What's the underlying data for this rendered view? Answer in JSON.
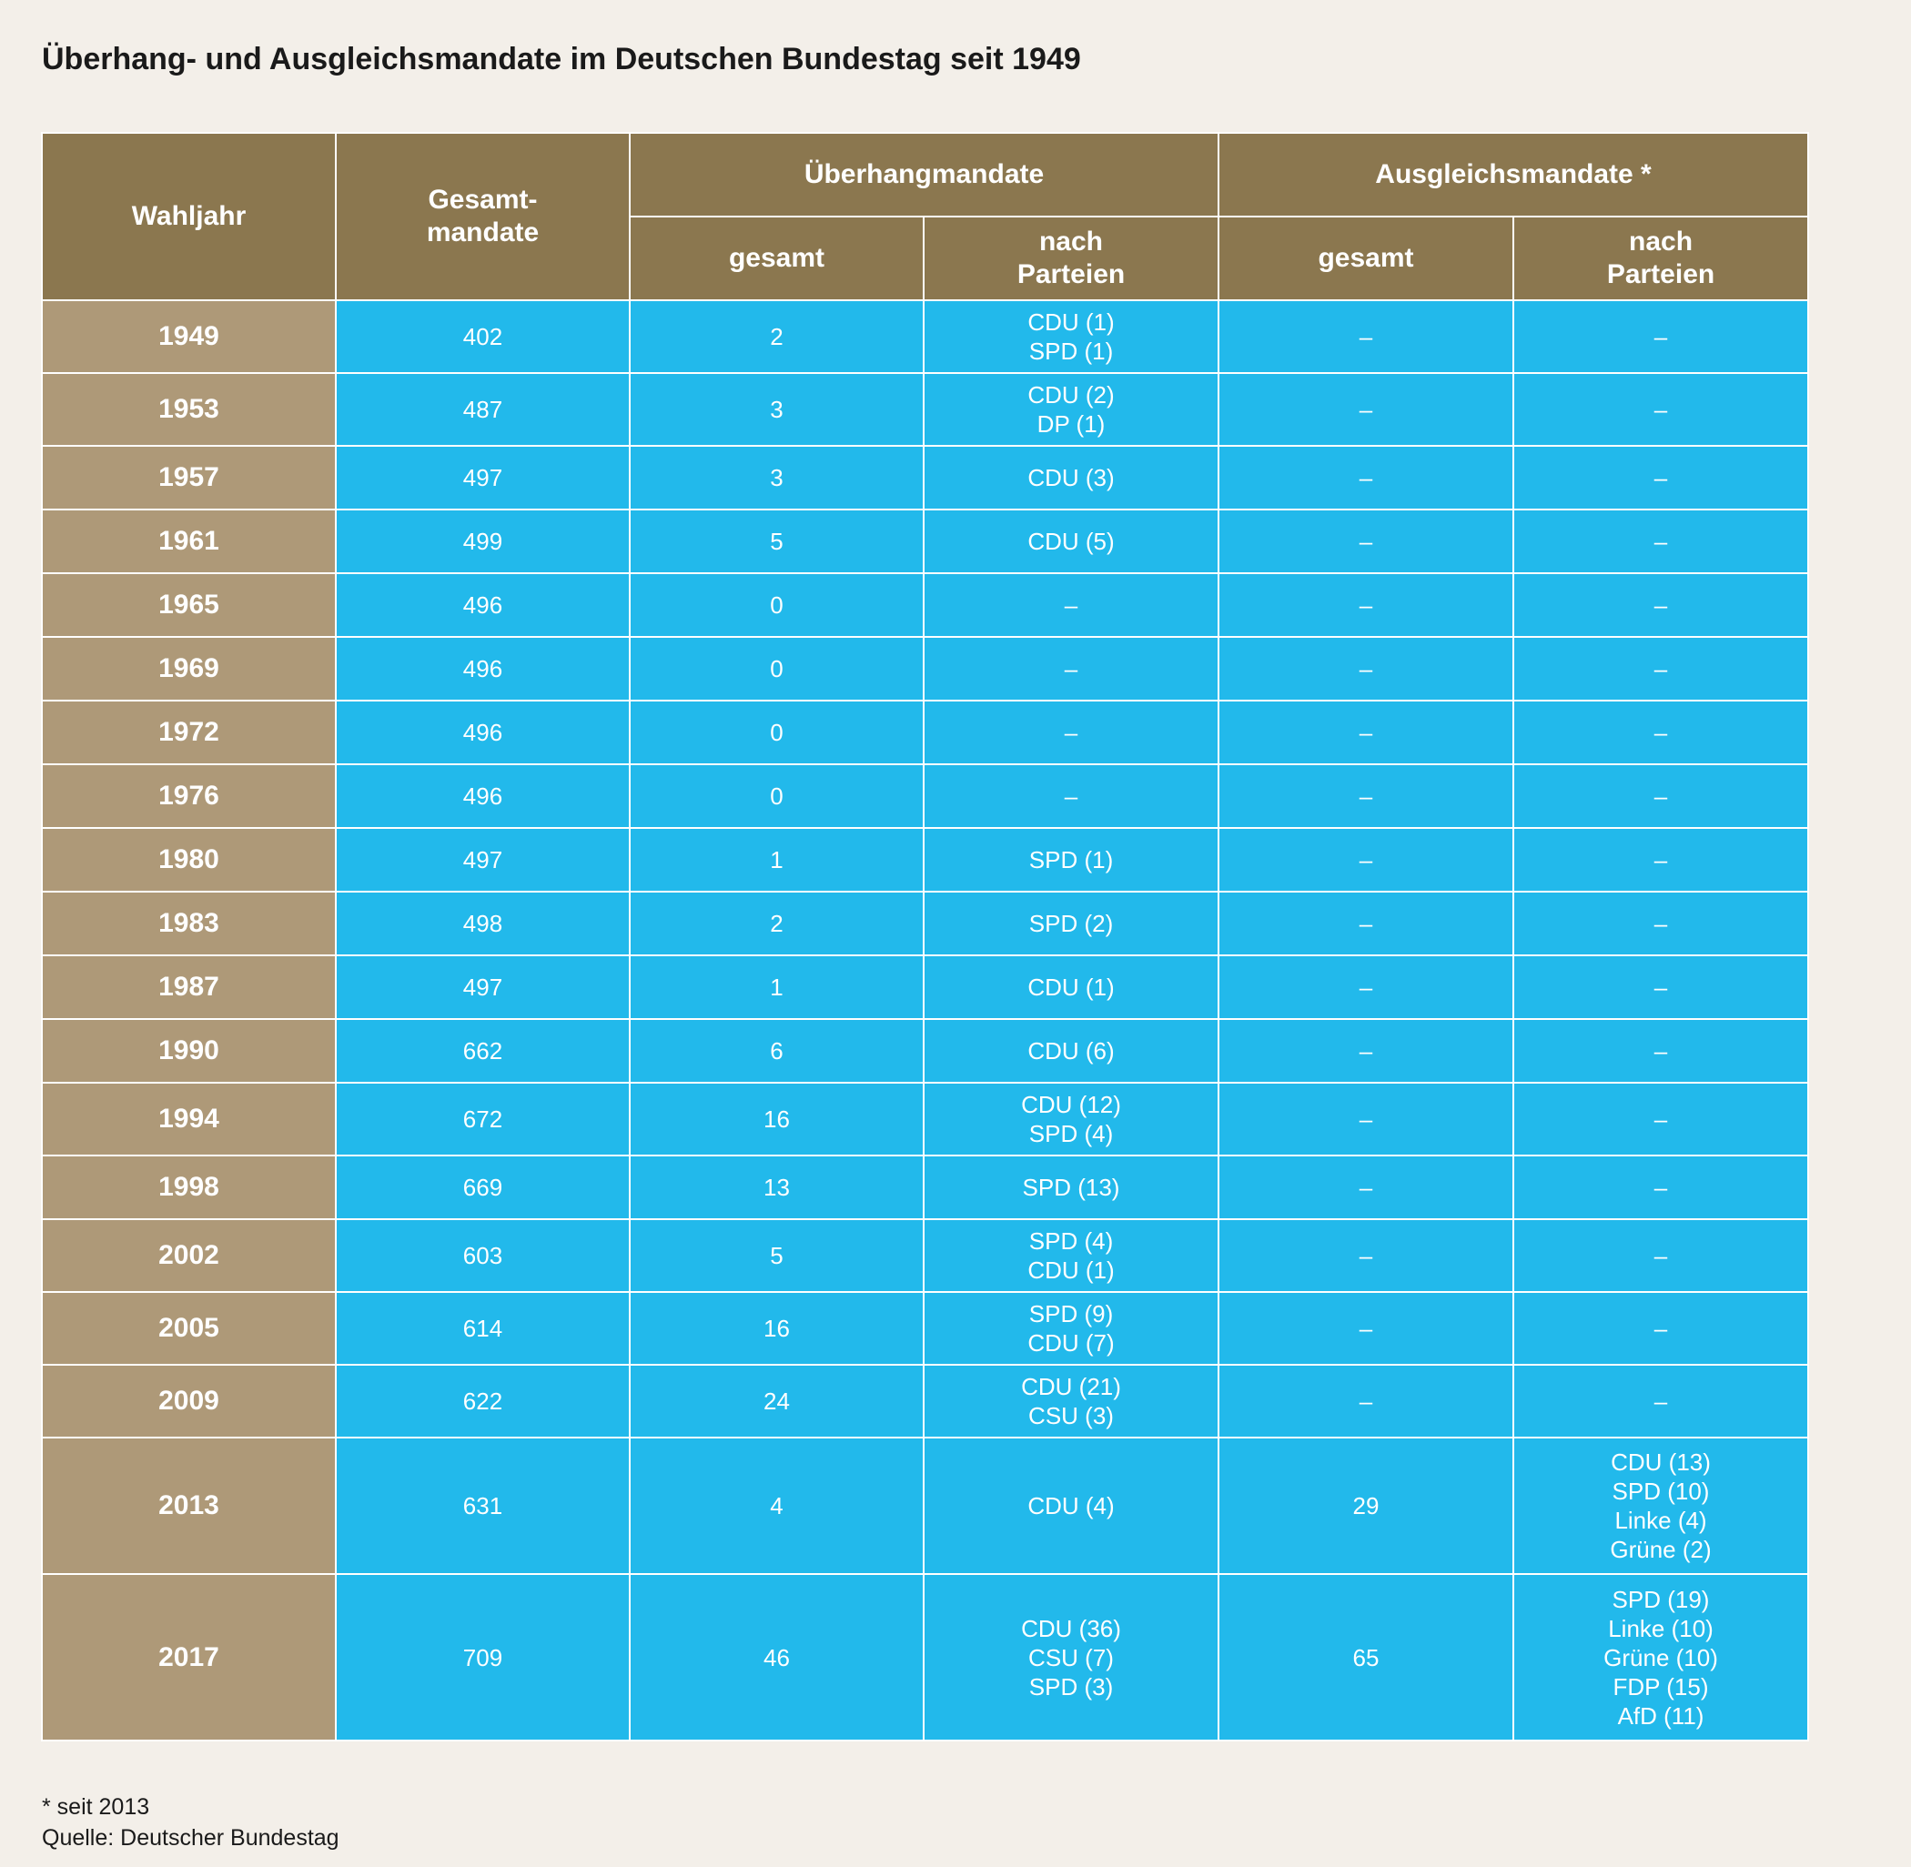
{
  "title": "Überhang- und Ausgleichsmandate im Deutschen Bundestag seit 1949",
  "headers": {
    "wahljahr": "Wahljahr",
    "gesamtmandate": "Gesamt-\nmandate",
    "ueberhang": "Überhangmandate",
    "ausgleich": "Ausgleichsmandate *",
    "gesamt": "gesamt",
    "nach_parteien": "nach\nParteien"
  },
  "footnote": "* seit 2013",
  "source": "Quelle: Deutscher Bundestag",
  "chart_data": {
    "type": "table",
    "columns": [
      "Wahljahr",
      "Gesamtmandate",
      "Überhangmandate gesamt",
      "Überhangmandate nach Parteien",
      "Ausgleichsmandate gesamt",
      "Ausgleichsmandate nach Parteien"
    ],
    "rows": [
      {
        "year": "1949",
        "total": "402",
        "ueb_total": "2",
        "ueb_parties": [
          "CDU (1)",
          "SPD (1)"
        ],
        "aus_total": "–",
        "aus_parties": [
          "–"
        ]
      },
      {
        "year": "1953",
        "total": "487",
        "ueb_total": "3",
        "ueb_parties": [
          "CDU (2)",
          "DP (1)"
        ],
        "aus_total": "–",
        "aus_parties": [
          "–"
        ]
      },
      {
        "year": "1957",
        "total": "497",
        "ueb_total": "3",
        "ueb_parties": [
          "CDU (3)"
        ],
        "aus_total": "–",
        "aus_parties": [
          "–"
        ]
      },
      {
        "year": "1961",
        "total": "499",
        "ueb_total": "5",
        "ueb_parties": [
          "CDU (5)"
        ],
        "aus_total": "–",
        "aus_parties": [
          "–"
        ]
      },
      {
        "year": "1965",
        "total": "496",
        "ueb_total": "0",
        "ueb_parties": [
          "–"
        ],
        "aus_total": "–",
        "aus_parties": [
          "–"
        ]
      },
      {
        "year": "1969",
        "total": "496",
        "ueb_total": "0",
        "ueb_parties": [
          "–"
        ],
        "aus_total": "–",
        "aus_parties": [
          "–"
        ]
      },
      {
        "year": "1972",
        "total": "496",
        "ueb_total": "0",
        "ueb_parties": [
          "–"
        ],
        "aus_total": "–",
        "aus_parties": [
          "–"
        ]
      },
      {
        "year": "1976",
        "total": "496",
        "ueb_total": "0",
        "ueb_parties": [
          "–"
        ],
        "aus_total": "–",
        "aus_parties": [
          "–"
        ]
      },
      {
        "year": "1980",
        "total": "497",
        "ueb_total": "1",
        "ueb_parties": [
          "SPD (1)"
        ],
        "aus_total": "–",
        "aus_parties": [
          "–"
        ]
      },
      {
        "year": "1983",
        "total": "498",
        "ueb_total": "2",
        "ueb_parties": [
          "SPD (2)"
        ],
        "aus_total": "–",
        "aus_parties": [
          "–"
        ]
      },
      {
        "year": "1987",
        "total": "497",
        "ueb_total": "1",
        "ueb_parties": [
          "CDU (1)"
        ],
        "aus_total": "–",
        "aus_parties": [
          "–"
        ]
      },
      {
        "year": "1990",
        "total": "662",
        "ueb_total": "6",
        "ueb_parties": [
          "CDU (6)"
        ],
        "aus_total": "–",
        "aus_parties": [
          "–"
        ]
      },
      {
        "year": "1994",
        "total": "672",
        "ueb_total": "16",
        "ueb_parties": [
          "CDU (12)",
          "SPD (4)"
        ],
        "aus_total": "–",
        "aus_parties": [
          "–"
        ]
      },
      {
        "year": "1998",
        "total": "669",
        "ueb_total": "13",
        "ueb_parties": [
          "SPD (13)"
        ],
        "aus_total": "–",
        "aus_parties": [
          "–"
        ]
      },
      {
        "year": "2002",
        "total": "603",
        "ueb_total": "5",
        "ueb_parties": [
          "SPD (4)",
          "CDU (1)"
        ],
        "aus_total": "–",
        "aus_parties": [
          "–"
        ]
      },
      {
        "year": "2005",
        "total": "614",
        "ueb_total": "16",
        "ueb_parties": [
          "SPD (9)",
          "CDU (7)"
        ],
        "aus_total": "–",
        "aus_parties": [
          "–"
        ]
      },
      {
        "year": "2009",
        "total": "622",
        "ueb_total": "24",
        "ueb_parties": [
          "CDU (21)",
          "CSU (3)"
        ],
        "aus_total": "–",
        "aus_parties": [
          "–"
        ]
      },
      {
        "year": "2013",
        "total": "631",
        "ueb_total": "4",
        "ueb_parties": [
          "CDU (4)"
        ],
        "aus_total": "29",
        "aus_parties": [
          "CDU (13)",
          "SPD (10)",
          "Linke (4)",
          "Grüne (2)"
        ]
      },
      {
        "year": "2017",
        "total": "709",
        "ueb_total": "46",
        "ueb_parties": [
          "CDU (36)",
          "CSU (7)",
          "SPD (3)"
        ],
        "aus_total": "65",
        "aus_parties": [
          "SPD (19)",
          "Linke (10)",
          "Grüne (10)",
          "FDP (15)",
          "AfD (11)"
        ]
      }
    ]
  },
  "colors": {
    "background": "#f3efe9",
    "header": "#8b774f",
    "year_cell": "#ae9978",
    "data_cell": "#22b9eb",
    "text_on_color": "#ffffff"
  }
}
